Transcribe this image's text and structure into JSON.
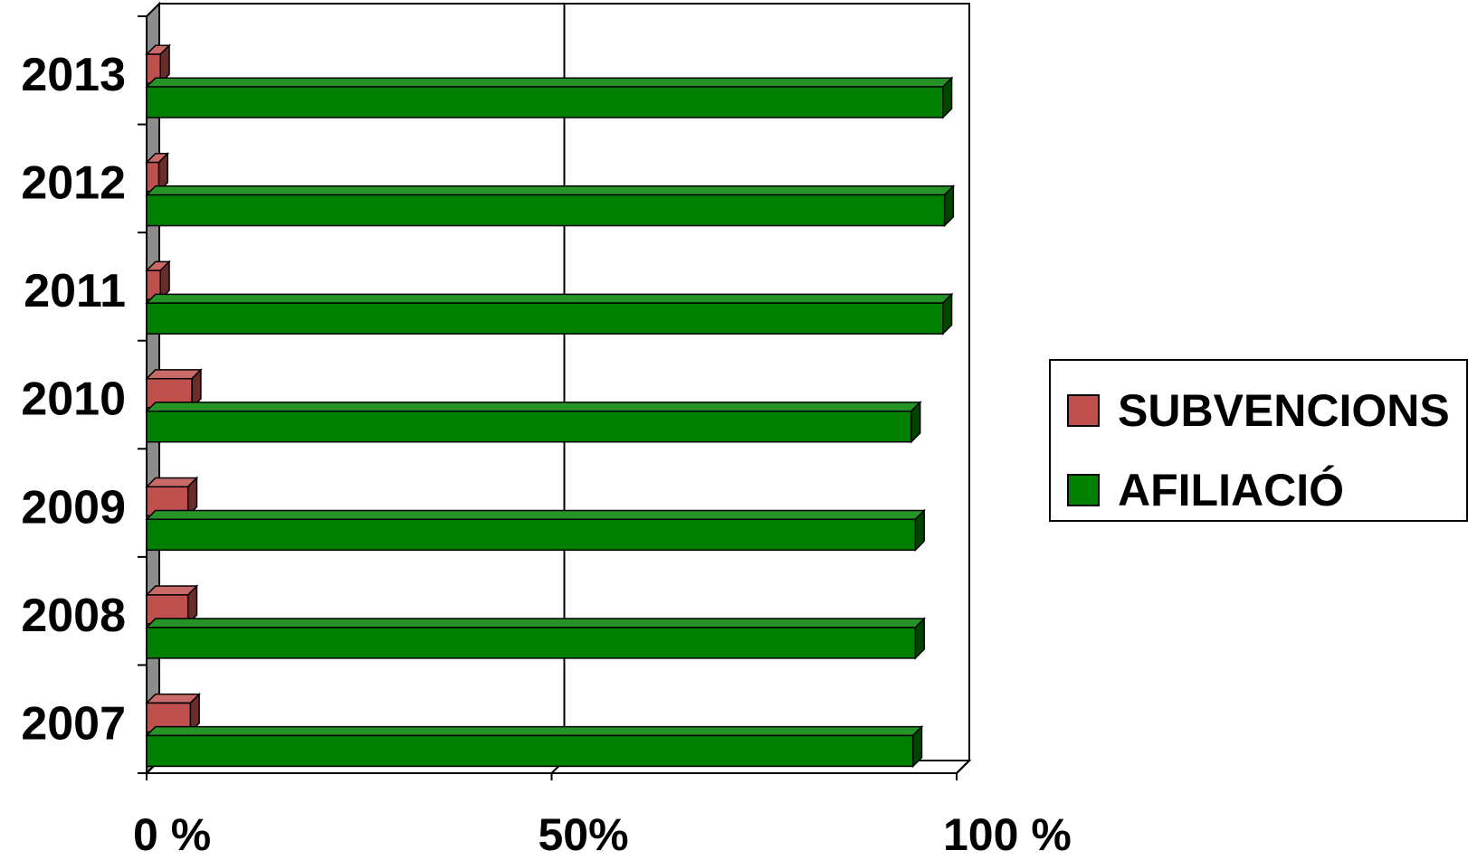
{
  "chart_data": {
    "type": "bar",
    "orientation": "horizontal",
    "style": "3d-clustered",
    "categories": [
      "2013",
      "2012",
      "2011",
      "2010",
      "2009",
      "2008",
      "2007"
    ],
    "series": [
      {
        "name": "SUBVENCIONS",
        "color": "#c0504d",
        "values": [
          1.7,
          1.5,
          1.7,
          5.6,
          5.1,
          5.1,
          5.4
        ]
      },
      {
        "name": "AFILIACIÓ",
        "color": "#008000",
        "values": [
          98.3,
          98.5,
          98.3,
          94.4,
          94.9,
          94.9,
          94.6
        ]
      }
    ],
    "x_ticks": [
      {
        "value": 0,
        "label": "0 %"
      },
      {
        "value": 50,
        "label": "50%"
      },
      {
        "value": 100,
        "label": "100 %"
      }
    ],
    "xlim": [
      0,
      100
    ],
    "grid": "vertical",
    "legend": "right"
  }
}
